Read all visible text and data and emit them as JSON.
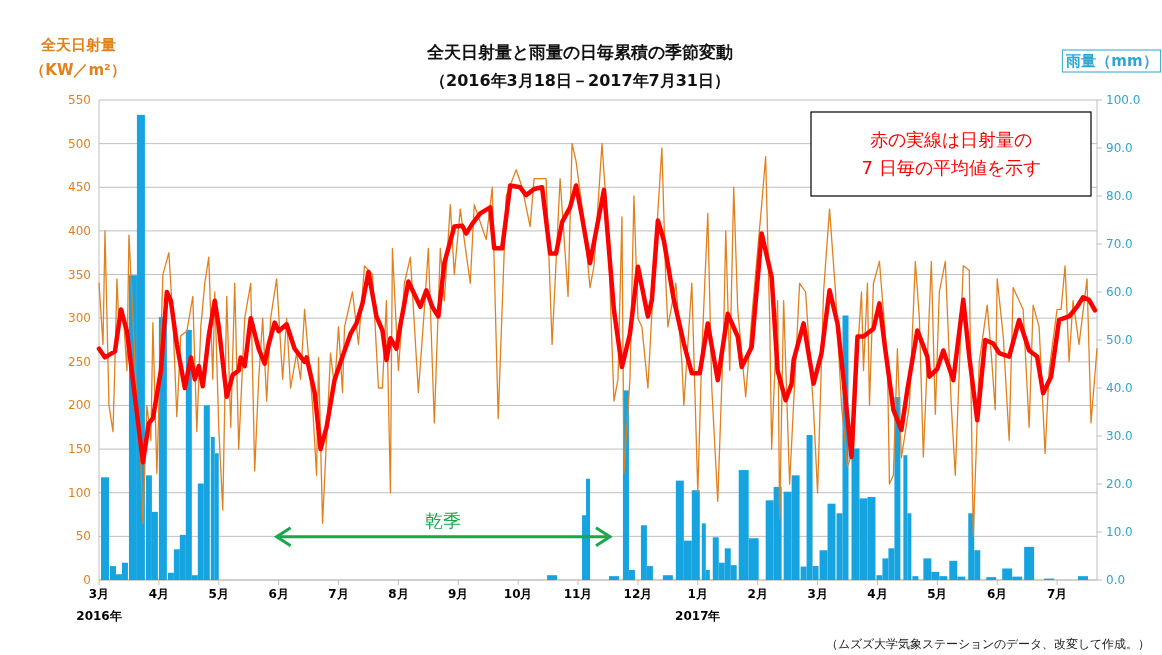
{
  "chart_data": {
    "type": "line",
    "title": "全天日射量と雨量の日毎累積の季節変動",
    "subtitle": "（2016年3月18日－2017年7月31日）",
    "ylabel": "全天日射量（KW／m²）",
    "y2label": "雨量（mm）",
    "xlim": [
      "2016-03-18",
      "2017-07-31"
    ],
    "xticks": [
      {
        "value": "2016-03-18",
        "label": "3月\n2016年"
      },
      {
        "value": "2016-04-17",
        "label": "4月"
      },
      {
        "value": "2016-05-17",
        "label": "5月"
      },
      {
        "value": "2016-06-16",
        "label": "6月"
      },
      {
        "value": "2016-07-16",
        "label": "7月"
      },
      {
        "value": "2016-08-15",
        "label": "8月"
      },
      {
        "value": "2016-09-14",
        "label": "9月"
      },
      {
        "value": "2016-10-14",
        "label": "10月"
      },
      {
        "value": "2016-11-13",
        "label": "11月"
      },
      {
        "value": "2016-12-13",
        "label": "12月"
      },
      {
        "value": "2017-01-12",
        "label": "1月\n2017年"
      },
      {
        "value": "2017-02-11",
        "label": "2月"
      },
      {
        "value": "2017-03-13",
        "label": "3月"
      },
      {
        "value": "2017-04-12",
        "label": "4月"
      },
      {
        "value": "2017-05-12",
        "label": "5月"
      },
      {
        "value": "2017-06-11",
        "label": "6月"
      },
      {
        "value": "2017-07-11",
        "label": "7月"
      }
    ],
    "ylim": [
      0,
      550
    ],
    "yticks": [
      0,
      50,
      100,
      150,
      200,
      250,
      300,
      350,
      400,
      450,
      500,
      550
    ],
    "y2lim": [
      0,
      100
    ],
    "y2ticks": [
      {
        "value": 0,
        "label": "0.0"
      },
      {
        "value": 10,
        "label": "10.0"
      },
      {
        "value": 20,
        "label": "20.0"
      },
      {
        "value": 30,
        "label": "30.0"
      },
      {
        "value": 40,
        "label": "40.0"
      },
      {
        "value": 50,
        "label": "50.0"
      },
      {
        "value": 60,
        "label": "60.0"
      },
      {
        "value": 70,
        "label": "70.0"
      },
      {
        "value": 80,
        "label": "80.0"
      },
      {
        "value": 90,
        "label": "90.0"
      },
      {
        "value": 100,
        "label": "100.0"
      }
    ],
    "grid": "y",
    "series": [
      {
        "type": "bar",
        "axis": "y2",
        "color": "#16a4e0",
        "x": [
          "2016-03-21",
          "2016-03-25",
          "2016-03-28",
          "2016-03-31",
          "2016-04-04",
          "2016-04-08",
          "2016-04-12",
          "2016-04-15",
          "2016-04-19",
          "2016-04-23",
          "2016-04-26",
          "2016-04-29",
          "2016-05-02",
          "2016-05-05",
          "2016-05-08",
          "2016-05-11",
          "2016-05-14",
          "2016-05-16",
          "2016-10-31",
          "2016-11-16",
          "2016-11-18",
          "2016-12-01",
          "2016-12-07",
          "2016-12-10",
          "2016-12-16",
          "2016-12-19",
          "2016-12-28",
          "2017-01-03",
          "2017-01-07",
          "2017-01-11",
          "2017-01-15",
          "2017-01-17",
          "2017-01-21",
          "2017-01-24",
          "2017-01-27",
          "2017-01-30",
          "2017-02-04",
          "2017-02-09",
          "2017-02-17",
          "2017-02-21",
          "2017-02-26",
          "2017-03-02",
          "2017-03-06",
          "2017-03-09",
          "2017-03-12",
          "2017-03-16",
          "2017-03-20",
          "2017-03-24",
          "2017-03-27",
          "2017-04-01",
          "2017-04-05",
          "2017-04-09",
          "2017-04-13",
          "2017-04-16",
          "2017-04-19",
          "2017-04-22",
          "2017-04-26",
          "2017-04-28",
          "2017-05-01",
          "2017-05-07",
          "2017-05-11",
          "2017-05-15",
          "2017-05-20",
          "2017-05-24",
          "2017-05-29",
          "2017-06-01",
          "2017-06-08",
          "2017-06-16",
          "2017-06-21",
          "2017-06-27",
          "2017-07-07",
          "2017-07-24"
        ],
        "values": [
          21.4,
          2.9,
          1.2,
          3.6,
          63.5,
          96.9,
          21.8,
          14.2,
          54.8,
          1.5,
          6.4,
          9.4,
          52.1,
          1.0,
          20.1,
          36.4,
          29.8,
          26.4,
          1.0,
          13.5,
          21.1,
          0.8,
          39.5,
          2.1,
          11.4,
          2.9,
          1.0,
          20.7,
          8.2,
          18.7,
          11.8,
          2.1,
          8.9,
          3.6,
          6.6,
          3.1,
          22.9,
          8.7,
          16.6,
          19.4,
          18.4,
          21.8,
          2.8,
          30.2,
          2.9,
          6.2,
          15.9,
          13.9,
          55.1,
          27.4,
          17.0,
          17.3,
          1.0,
          4.5,
          6.6,
          38.1,
          26.0,
          13.9,
          0.8,
          4.5,
          1.7,
          0.8,
          4.0,
          0.7,
          13.9,
          6.2,
          0.6,
          2.4,
          0.7,
          6.9,
          0.3,
          0.8
        ]
      },
      {
        "type": "line",
        "color": "#e2801e",
        "x": [
          "2016-03-18",
          "2016-03-20",
          "2016-03-21",
          "2016-03-23",
          "2016-03-25",
          "2016-03-26",
          "2016-03-27",
          "2016-03-28",
          "2016-03-30",
          "2016-04-01",
          "2016-04-02",
          "2016-04-04",
          "2016-04-06",
          "2016-04-08",
          "2016-04-09",
          "2016-04-11",
          "2016-04-13",
          "2016-04-14",
          "2016-04-16",
          "2016-04-19",
          "2016-04-22",
          "2016-04-24",
          "2016-04-26",
          "2016-04-28",
          "2016-05-01",
          "2016-05-04",
          "2016-05-06",
          "2016-05-08",
          "2016-05-10",
          "2016-05-12",
          "2016-05-14",
          "2016-05-15",
          "2016-05-17",
          "2016-05-19",
          "2016-05-21",
          "2016-05-23",
          "2016-05-25",
          "2016-05-27",
          "2016-05-30",
          "2016-06-02",
          "2016-06-04",
          "2016-06-06",
          "2016-06-08",
          "2016-06-10",
          "2016-06-12",
          "2016-06-15",
          "2016-06-18",
          "2016-06-20",
          "2016-06-22",
          "2016-06-25",
          "2016-06-27",
          "2016-06-29",
          "2016-07-01",
          "2016-07-03",
          "2016-07-05",
          "2016-07-06",
          "2016-07-08",
          "2016-07-12",
          "2016-07-14",
          "2016-07-16",
          "2016-07-18",
          "2016-07-19",
          "2016-07-23",
          "2016-07-26",
          "2016-07-29",
          "2016-08-02",
          "2016-08-05",
          "2016-08-07",
          "2016-08-09",
          "2016-08-11",
          "2016-08-12",
          "2016-08-15",
          "2016-08-18",
          "2016-08-21",
          "2016-08-25",
          "2016-08-28",
          "2016-08-30",
          "2016-09-02",
          "2016-09-05",
          "2016-09-07",
          "2016-09-10",
          "2016-09-12",
          "2016-09-15",
          "2016-09-17",
          "2016-09-20",
          "2016-09-22",
          "2016-09-28",
          "2016-10-01",
          "2016-10-04",
          "2016-10-08",
          "2016-10-13",
          "2016-10-16",
          "2016-10-20",
          "2016-10-22",
          "2016-10-28",
          "2016-10-31",
          "2016-11-04",
          "2016-11-08",
          "2016-11-10",
          "2016-11-12",
          "2016-11-16",
          "2016-11-19",
          "2016-11-21",
          "2016-11-25",
          "2016-11-28",
          "2016-12-01",
          "2016-12-03",
          "2016-12-05",
          "2016-12-06",
          "2016-12-09",
          "2016-12-11",
          "2016-12-13",
          "2016-12-15",
          "2016-12-18",
          "2016-12-21",
          "2016-12-25",
          "2016-12-27",
          "2016-12-28",
          "2017-01-01",
          "2017-01-04",
          "2017-01-05",
          "2017-01-09",
          "2017-01-12",
          "2017-01-14",
          "2017-01-17",
          "2017-01-19",
          "2017-01-22",
          "2017-01-25",
          "2017-01-26",
          "2017-01-28",
          "2017-01-30",
          "2017-02-01",
          "2017-02-05",
          "2017-02-08",
          "2017-02-13",
          "2017-02-15",
          "2017-02-17",
          "2017-02-18",
          "2017-02-21",
          "2017-02-22",
          "2017-02-24",
          "2017-02-27",
          "2017-03-04",
          "2017-03-07",
          "2017-03-11",
          "2017-03-13",
          "2017-03-16",
          "2017-03-19",
          "2017-03-22",
          "2017-03-25",
          "2017-03-28",
          "2017-03-31",
          "2017-04-02",
          "2017-04-04",
          "2017-04-05",
          "2017-04-07",
          "2017-04-08",
          "2017-04-10",
          "2017-04-13",
          "2017-04-17",
          "2017-04-18",
          "2017-04-20",
          "2017-04-22",
          "2017-04-24",
          "2017-04-28",
          "2017-05-01",
          "2017-05-03",
          "2017-05-05",
          "2017-05-09",
          "2017-05-11",
          "2017-05-13",
          "2017-05-16",
          "2017-05-19",
          "2017-05-21",
          "2017-05-25",
          "2017-05-28",
          "2017-05-30",
          "2017-06-02",
          "2017-06-06",
          "2017-06-08",
          "2017-06-10",
          "2017-06-11",
          "2017-06-14",
          "2017-06-17",
          "2017-06-19",
          "2017-06-22",
          "2017-06-24",
          "2017-06-27",
          "2017-06-29",
          "2017-07-02",
          "2017-07-05",
          "2017-07-07",
          "2017-07-11",
          "2017-07-13",
          "2017-07-15",
          "2017-07-17",
          "2017-07-19",
          "2017-07-22",
          "2017-07-26",
          "2017-07-28",
          "2017-07-31"
        ],
        "values": [
          340,
          270,
          400,
          200,
          170,
          250,
          345,
          290,
          310,
          240,
          395,
          300,
          200,
          130,
          65,
          200,
          160,
          295,
          122,
          350,
          375,
          300,
          187,
          280,
          285,
          325,
          170,
          290,
          340,
          370,
          230,
          330,
          175,
          80,
          325,
          175,
          340,
          150,
          300,
          340,
          125,
          230,
          300,
          205,
          300,
          345,
          230,
          300,
          220,
          260,
          230,
          310,
          255,
          200,
          120,
          255,
          65,
          260,
          220,
          290,
          215,
          290,
          330,
          270,
          360,
          350,
          220,
          220,
          320,
          100,
          380,
          240,
          340,
          370,
          215,
          310,
          380,
          180,
          380,
          320,
          430,
          350,
          425,
          390,
          340,
          430,
          390,
          450,
          185,
          440,
          470,
          450,
          405,
          460,
          460,
          270,
          460,
          325,
          500,
          480,
          410,
          335,
          360,
          500,
          400,
          205,
          230,
          416,
          122,
          230,
          440,
          300,
          290,
          220,
          350,
          495,
          340,
          290,
          340,
          250,
          200,
          340,
          100,
          260,
          420,
          220,
          90,
          290,
          400,
          240,
          450,
          310,
          210,
          300,
          430,
          485,
          300,
          150,
          320,
          70,
          320,
          110,
          340,
          330,
          195,
          100,
          330,
          425,
          330,
          200,
          130,
          150,
          260,
          330,
          240,
          340,
          200,
          340,
          365,
          250,
          110,
          120,
          265,
          140,
          200,
          365,
          300,
          141,
          365,
          190,
          330,
          365,
          200,
          120,
          360,
          355,
          50,
          250,
          315,
          260,
          195,
          345,
          280,
          160,
          335,
          320,
          310,
          175,
          315,
          290,
          145,
          240,
          310,
          310,
          360,
          250,
          320,
          270,
          345,
          180,
          265
        ]
      },
      {
        "type": "line",
        "color": "#ff0000",
        "x": [
          "2016-03-18",
          "2016-03-21",
          "2016-03-26",
          "2016-03-29",
          "2016-04-01",
          "2016-04-09",
          "2016-04-12",
          "2016-04-14",
          "2016-04-18",
          "2016-04-21",
          "2016-04-23",
          "2016-04-26",
          "2016-04-30",
          "2016-05-03",
          "2016-05-05",
          "2016-05-07",
          "2016-05-09",
          "2016-05-12",
          "2016-05-15",
          "2016-05-17",
          "2016-05-21",
          "2016-05-24",
          "2016-05-27",
          "2016-05-28",
          "2016-05-30",
          "2016-06-02",
          "2016-06-06",
          "2016-06-09",
          "2016-06-11",
          "2016-06-14",
          "2016-06-16",
          "2016-06-20",
          "2016-06-24",
          "2016-06-29",
          "2016-06-30",
          "2016-07-04",
          "2016-07-07",
          "2016-07-10",
          "2016-07-14",
          "2016-07-18",
          "2016-07-22",
          "2016-07-25",
          "2016-07-28",
          "2016-07-31",
          "2016-08-04",
          "2016-08-07",
          "2016-08-09",
          "2016-08-11",
          "2016-08-14",
          "2016-08-16",
          "2016-08-20",
          "2016-08-26",
          "2016-08-29",
          "2016-09-01",
          "2016-09-04",
          "2016-09-07",
          "2016-09-12",
          "2016-09-16",
          "2016-09-18",
          "2016-09-21",
          "2016-09-25",
          "2016-09-30",
          "2016-10-02",
          "2016-10-06",
          "2016-10-10",
          "2016-10-15",
          "2016-10-18",
          "2016-10-22",
          "2016-10-26",
          "2016-10-30",
          "2016-11-02",
          "2016-11-05",
          "2016-11-09",
          "2016-11-12",
          "2016-11-15",
          "2016-11-19",
          "2016-11-26",
          "2016-12-01",
          "2016-12-05",
          "2016-12-09",
          "2016-12-13",
          "2016-12-18",
          "2016-12-20",
          "2016-12-23",
          "2016-12-26",
          "2016-12-31",
          "2017-01-05",
          "2017-01-09",
          "2017-01-13",
          "2017-01-17",
          "2017-01-22",
          "2017-01-27",
          "2017-02-01",
          "2017-02-03",
          "2017-02-08",
          "2017-02-13",
          "2017-02-18",
          "2017-02-21",
          "2017-02-25",
          "2017-02-28",
          "2017-03-01",
          "2017-03-06",
          "2017-03-11",
          "2017-03-15",
          "2017-03-19",
          "2017-03-23",
          "2017-03-26",
          "2017-03-30",
          "2017-04-02",
          "2017-04-05",
          "2017-04-10",
          "2017-04-13",
          "2017-04-16",
          "2017-04-20",
          "2017-04-24",
          "2017-04-27",
          "2017-05-02",
          "2017-05-07",
          "2017-05-08",
          "2017-05-12",
          "2017-05-15",
          "2017-05-20",
          "2017-05-25",
          "2017-05-28",
          "2017-06-01",
          "2017-06-05",
          "2017-06-09",
          "2017-06-12",
          "2017-06-17",
          "2017-06-22",
          "2017-06-27",
          "2017-07-01",
          "2017-07-04",
          "2017-07-08",
          "2017-07-12",
          "2017-07-17",
          "2017-07-21",
          "2017-07-24",
          "2017-07-27",
          "2017-07-30"
        ],
        "values": [
          265,
          255,
          262,
          310,
          285,
          135,
          180,
          185,
          240,
          330,
          320,
          270,
          220,
          255,
          230,
          245,
          222,
          280,
          320,
          290,
          210,
          235,
          240,
          255,
          245,
          300,
          265,
          248,
          270,
          295,
          285,
          293,
          265,
          250,
          255,
          215,
          150,
          175,
          229,
          256,
          282,
          294,
          317,
          353,
          302,
          286,
          252,
          277,
          265,
          292,
          342,
          313,
          332,
          313,
          302,
          363,
          405,
          406,
          397,
          408,
          420,
          427,
          380,
          380,
          452,
          450,
          441,
          448,
          450,
          374,
          374,
          410,
          427,
          452,
          416,
          363,
          447,
          309,
          244,
          282,
          359,
          302,
          321,
          412,
          389,
          321,
          271,
          237,
          237,
          294,
          229,
          305,
          279,
          244,
          267,
          397,
          347,
          240,
          206,
          225,
          252,
          294,
          225,
          260,
          332,
          294,
          230,
          141,
          279,
          279,
          288,
          317,
          263,
          195,
          172,
          218,
          286,
          256,
          233,
          242,
          263,
          229,
          321,
          256,
          183,
          275,
          271,
          260,
          256,
          298,
          263,
          256,
          214,
          233,
          298,
          302,
          313,
          324,
          321,
          309
        ]
      }
    ],
    "annotations": [
      "乾季",
      "赤の実線は日射量の\n7 日毎の平均値を示す",
      "（ムズズ大学気象ステーションのデータ、改変して作成。）"
    ]
  }
}
